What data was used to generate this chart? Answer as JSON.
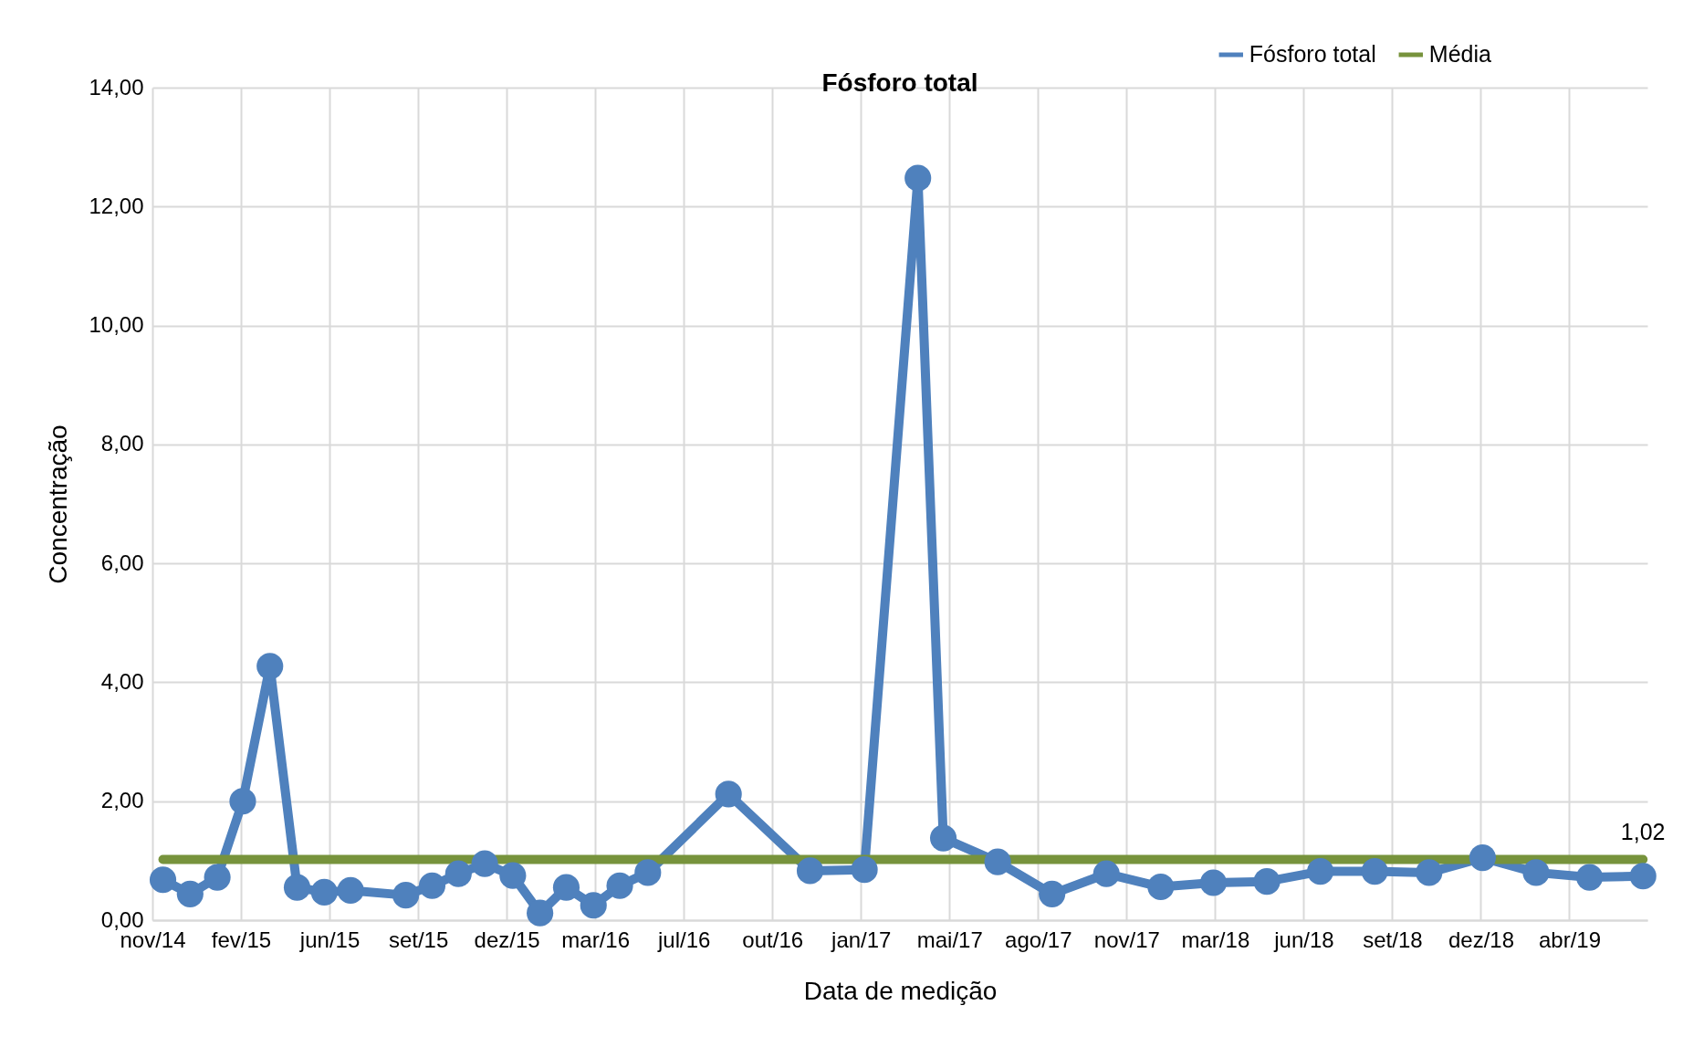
{
  "chart_data": {
    "type": "line",
    "title": "Fósforo total",
    "xlabel": "Data de medição",
    "ylabel": "Concentração",
    "xlim": [
      "2014-11-12",
      "2019-07-14"
    ],
    "xticks": [
      {
        "value": "2014-11-12",
        "label": "nov/14"
      },
      {
        "value": "2015-02-21",
        "label": "fev/15"
      },
      {
        "value": "2015-06-02",
        "label": "jun/15"
      },
      {
        "value": "2015-09-11",
        "label": "set/15"
      },
      {
        "value": "2015-12-21",
        "label": "dez/15"
      },
      {
        "value": "2016-03-31",
        "label": "mar/16"
      },
      {
        "value": "2016-07-10",
        "label": "jul/16"
      },
      {
        "value": "2016-10-19",
        "label": "out/16"
      },
      {
        "value": "2017-01-28",
        "label": "jan/17"
      },
      {
        "value": "2017-05-09",
        "label": "mai/17"
      },
      {
        "value": "2017-08-18",
        "label": "ago/17"
      },
      {
        "value": "2017-11-27",
        "label": "nov/17"
      },
      {
        "value": "2018-03-08",
        "label": "mar/18"
      },
      {
        "value": "2018-06-17",
        "label": "jun/18"
      },
      {
        "value": "2018-09-26",
        "label": "set/18"
      },
      {
        "value": "2019-01-05",
        "label": "dez/18"
      },
      {
        "value": "2019-04-16",
        "label": "abr/19"
      }
    ],
    "ylim": [
      0,
      14
    ],
    "yticks": [
      {
        "value": 0,
        "label": "0,00"
      },
      {
        "value": 2,
        "label": "2,00"
      },
      {
        "value": 4,
        "label": "4,00"
      },
      {
        "value": 6,
        "label": "6,00"
      },
      {
        "value": 8,
        "label": "8,00"
      },
      {
        "value": 10,
        "label": "10,00"
      },
      {
        "value": 12,
        "label": "12,00"
      },
      {
        "value": 14,
        "label": "14,00"
      }
    ],
    "grid": true,
    "legend": "top right",
    "series": [
      {
        "name": "Fósforo total",
        "color": "#4f81bd",
        "marker": "circle",
        "x": [
          "2014-11-24",
          "2014-12-25",
          "2015-01-25",
          "2015-02-23",
          "2015-03-26",
          "2015-04-26",
          "2015-05-27",
          "2015-06-26",
          "2015-08-28",
          "2015-09-27",
          "2015-10-27",
          "2015-11-26",
          "2015-12-28",
          "2016-01-28",
          "2016-02-27",
          "2016-03-29",
          "2016-04-28",
          "2016-05-30",
          "2016-08-30",
          "2016-12-01",
          "2017-02-01",
          "2017-04-03",
          "2017-05-02",
          "2017-07-03",
          "2017-09-03",
          "2017-11-04",
          "2018-01-05",
          "2018-03-06",
          "2018-05-06",
          "2018-07-06",
          "2018-09-06",
          "2018-11-07",
          "2019-01-07",
          "2019-03-09",
          "2019-05-09",
          "2019-07-09"
        ],
        "values": [
          0.68,
          0.44,
          0.72,
          2.0,
          4.27,
          0.55,
          0.47,
          0.5,
          0.42,
          0.58,
          0.78,
          0.95,
          0.75,
          0.12,
          0.55,
          0.25,
          0.58,
          0.8,
          2.12,
          0.83,
          0.85,
          12.48,
          1.38,
          0.98,
          0.44,
          0.78,
          0.56,
          0.63,
          0.65,
          0.82,
          0.82,
          0.8,
          1.05,
          0.8,
          0.72,
          0.74
        ]
      },
      {
        "name": "Média",
        "color": "#77933c",
        "marker": "none",
        "x": [
          "2014-11-24",
          "2019-07-09"
        ],
        "values": [
          1.02,
          1.02
        ],
        "value_labels": [
          null,
          "1,02"
        ]
      }
    ]
  }
}
